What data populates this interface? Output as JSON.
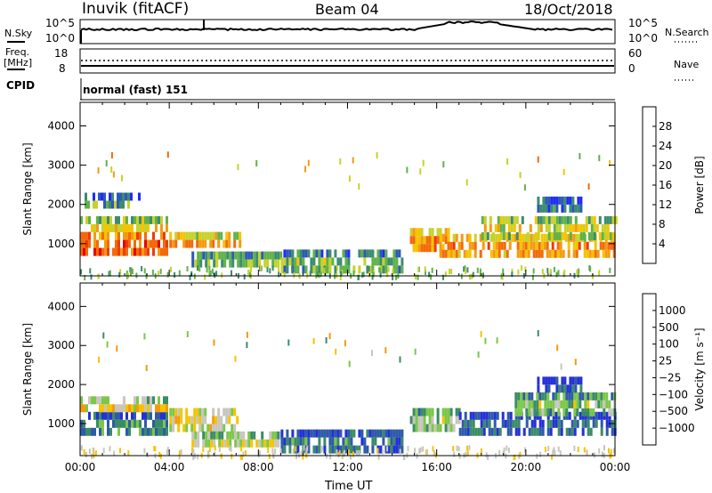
{
  "header": {
    "station": "Inuvik (fitACF)",
    "beam": "Beam 04",
    "date": "18/Oct/2018"
  },
  "top_panels": {
    "nsky_label": "N.Sky",
    "nsky_ticks": [
      "10^5",
      "10^0"
    ],
    "nsearch_label": "N.Search",
    "nsearch_ticks": [
      "10^5",
      "10^0"
    ],
    "freq_label_1": "Freq.",
    "freq_label_2": "[MHz]",
    "freq_ticks": [
      "18",
      "8"
    ],
    "nave_label": "Nave",
    "nave_ticks": [
      "60",
      "0"
    ],
    "cpid_label": "CPID",
    "cpid_value": "normal (fast) 151"
  },
  "chart_data": [
    {
      "type": "heatmap",
      "title": "",
      "ylabel": "Slant Range [km]",
      "ylim": [
        180,
        4600
      ],
      "yticks": [
        "4000",
        "3000",
        "2000",
        "1000"
      ],
      "xlim": [
        0,
        24
      ],
      "colorbar": {
        "label": "Power [dB]",
        "ticks": [
          "28",
          "24",
          "20",
          "16",
          "12",
          "8",
          "4"
        ],
        "colors": [
          "#1E2BFF",
          "#2E58B8",
          "#3C8C6E",
          "#5FB24A",
          "#C6D22B",
          "#F5C400",
          "#F59A10",
          "#F26A0C",
          "#EE3A0A",
          "#E60000"
        ]
      },
      "echo_bands": [
        {
          "t0": 0.0,
          "t1": 3.9,
          "r0": 700,
          "r1": 1300,
          "level": 0.9
        },
        {
          "t0": 0.0,
          "t1": 3.9,
          "r0": 1300,
          "r1": 1700,
          "level": 0.55
        },
        {
          "t0": 0.2,
          "t1": 2.6,
          "r0": 1900,
          "r1": 2300,
          "level": 0.3
        },
        {
          "t0": 4.0,
          "t1": 7.2,
          "r0": 900,
          "r1": 1300,
          "level": 0.7
        },
        {
          "t0": 5.0,
          "t1": 9.0,
          "r0": 550,
          "r1": 800,
          "level": 0.45
        },
        {
          "t0": 9.0,
          "t1": 14.5,
          "r0": 300,
          "r1": 850,
          "level": 0.4
        },
        {
          "t0": 14.8,
          "t1": 16.5,
          "r0": 800,
          "r1": 1400,
          "level": 0.75
        },
        {
          "t0": 16.0,
          "t1": 24.0,
          "r0": 700,
          "r1": 1250,
          "level": 0.75
        },
        {
          "t0": 18.0,
          "t1": 24.0,
          "r0": 1200,
          "r1": 1700,
          "level": 0.55
        },
        {
          "t0": 20.5,
          "t1": 22.5,
          "r0": 1900,
          "r1": 2200,
          "level": 0.25
        }
      ]
    },
    {
      "type": "heatmap",
      "title": "",
      "ylabel": "Slant Range [km]",
      "xlabel": "Time UT",
      "ylim": [
        180,
        4600
      ],
      "yticks": [
        "4000",
        "3000",
        "2000",
        "1000"
      ],
      "xlim": [
        0,
        24
      ],
      "xticks": [
        "00:00",
        "04:00",
        "08:00",
        "12:00",
        "16:00",
        "20:00",
        "00:00"
      ],
      "colorbar": {
        "label": "Velocity [m s⁻¹]",
        "ticks": [
          "1000",
          "500",
          "100",
          "25",
          "−25",
          "−100",
          "−500",
          "−1000"
        ],
        "colors": [
          "#2430D8",
          "#2E5AA8",
          "#3A8C66",
          "#7CC74A",
          "#C8C6BE",
          "#F5C400",
          "#F59A10",
          "#F26A0C",
          "#E60000"
        ]
      },
      "echo_bands": [
        {
          "t0": 0.0,
          "t1": 3.9,
          "r0": 700,
          "r1": 1300,
          "level": 0.3
        },
        {
          "t0": 0.0,
          "t1": 3.9,
          "r0": 1300,
          "r1": 1700,
          "level": 0.6
        },
        {
          "t0": 4.0,
          "t1": 7.2,
          "r0": 900,
          "r1": 1400,
          "level": 0.65
        },
        {
          "t0": 5.0,
          "t1": 9.0,
          "r0": 550,
          "r1": 800,
          "level": 0.6
        },
        {
          "t0": 9.0,
          "t1": 14.5,
          "r0": 300,
          "r1": 850,
          "level": 0.25
        },
        {
          "t0": 14.8,
          "t1": 17.0,
          "r0": 800,
          "r1": 1400,
          "level": 0.5
        },
        {
          "t0": 17.0,
          "t1": 24.0,
          "r0": 700,
          "r1": 1300,
          "level": 0.2
        },
        {
          "t0": 19.5,
          "t1": 24.0,
          "r0": 1300,
          "r1": 1800,
          "level": 0.45
        },
        {
          "t0": 20.5,
          "t1": 22.5,
          "r0": 1900,
          "r1": 2200,
          "level": 0.15
        }
      ]
    }
  ]
}
